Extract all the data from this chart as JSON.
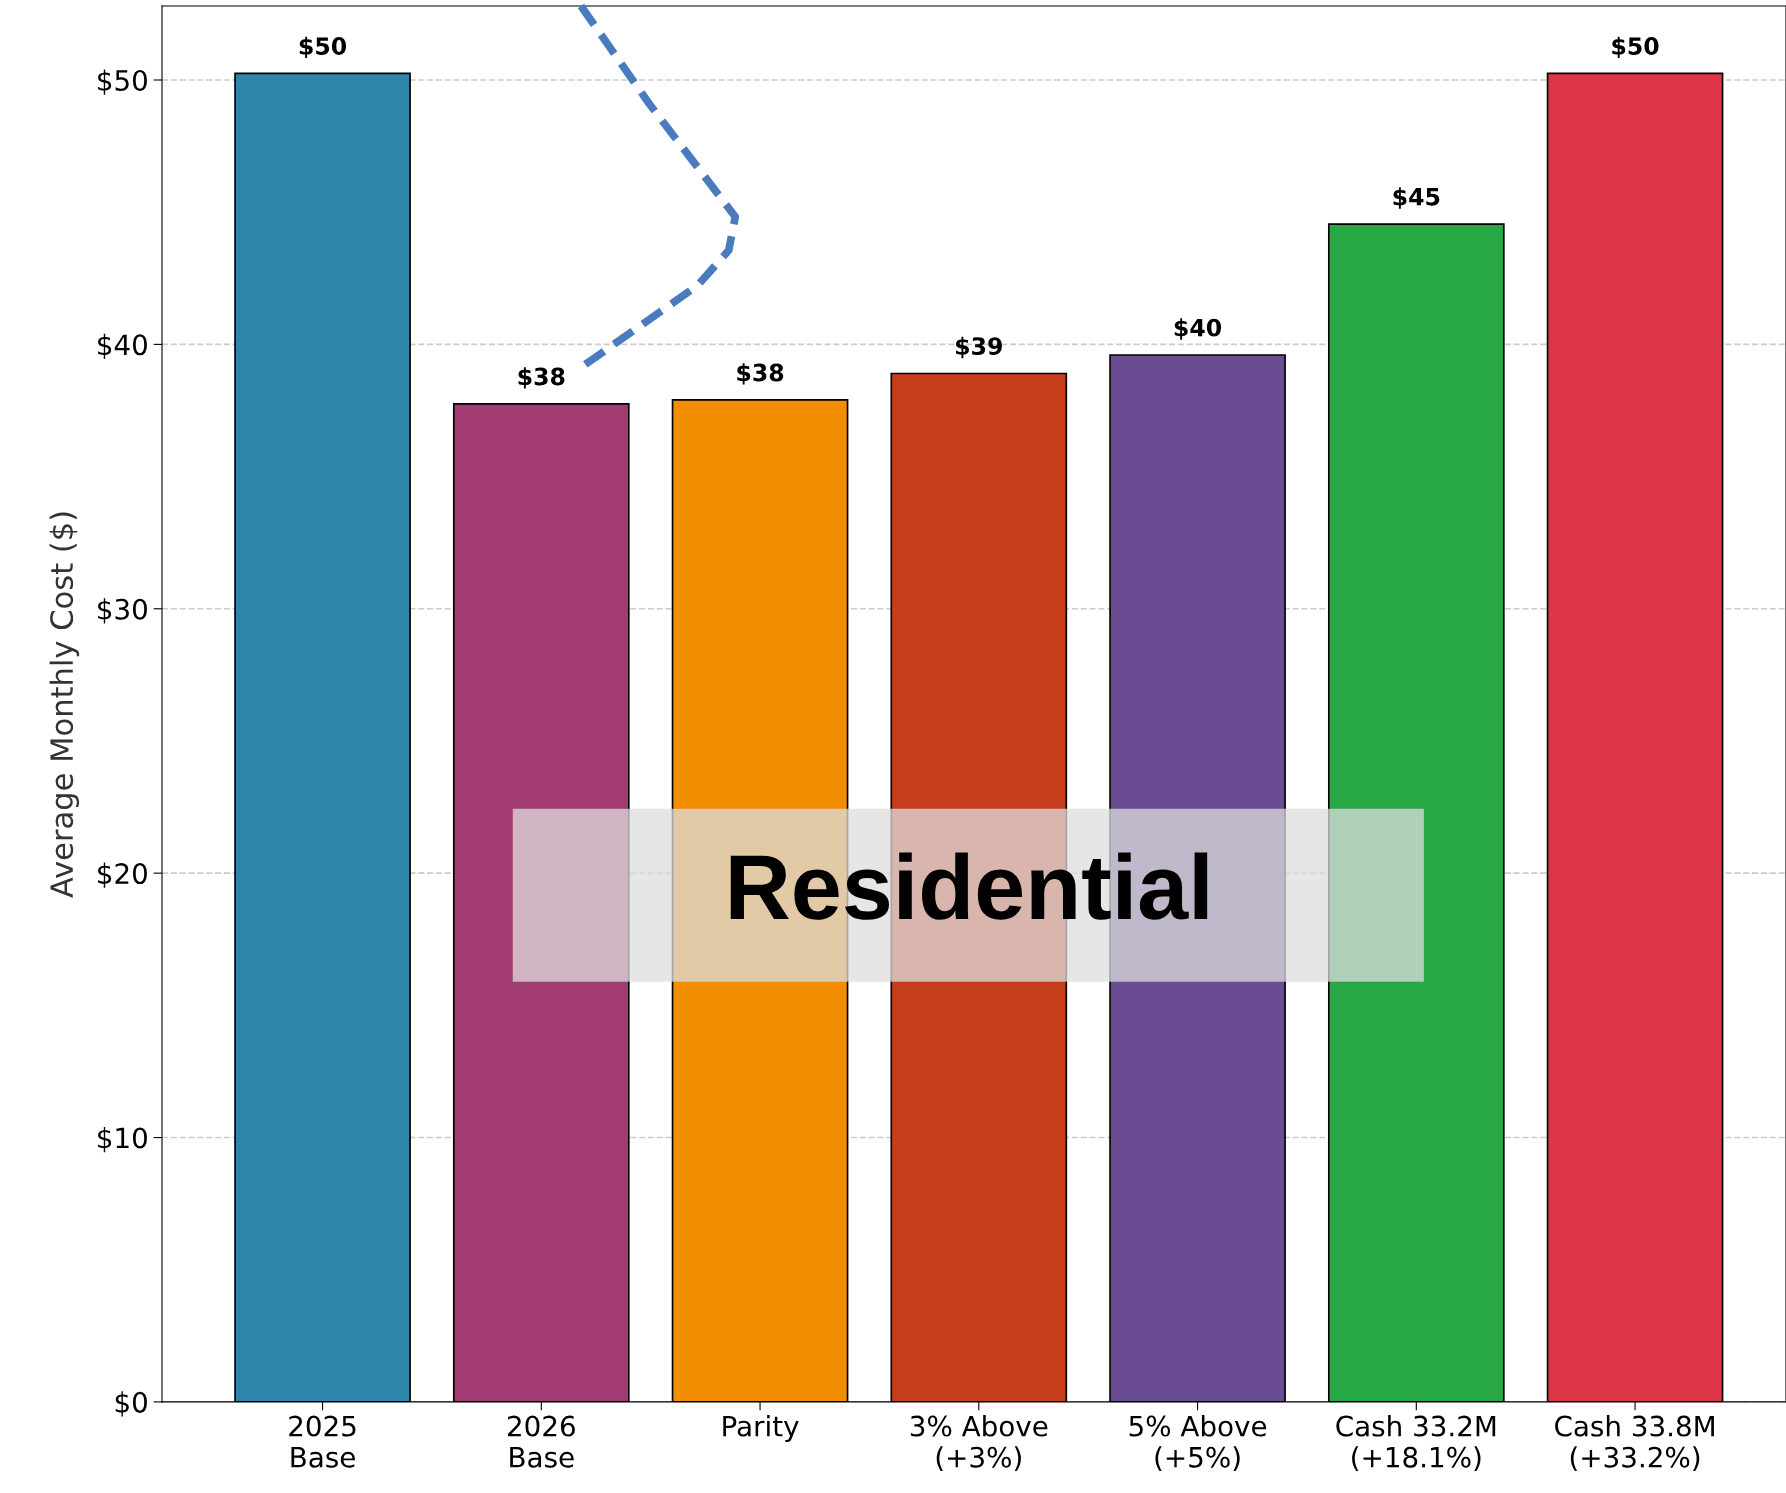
{
  "chart_data": {
    "type": "bar",
    "ylabel": "Average Monthly Cost ($)",
    "categories": [
      "2025\nBase",
      "2026\nBase",
      "Parity",
      "3% Above\n(+3%)",
      "5% Above\n(+5%)",
      "Cash 33.2M\n(+18.1%)",
      "Cash 33.8M\n(+33.2%)"
    ],
    "values": [
      50.25,
      37.75,
      37.9,
      38.9,
      39.6,
      44.55,
      50.25
    ],
    "value_labels": [
      "$50",
      "$38",
      "$38",
      "$39",
      "$40",
      "$45",
      "$50"
    ],
    "colors": [
      "#2e86ab",
      "#a23b72",
      "#f18f01",
      "#c73e1d",
      "#6a4c93",
      "#28a745",
      "#dc3545"
    ],
    "ylim": [
      0,
      52.8
    ],
    "yticks": [
      {
        "value": 0,
        "label": "$0"
      },
      {
        "value": 10,
        "label": "$10"
      },
      {
        "value": 20,
        "label": "$20"
      },
      {
        "value": 30,
        "label": "$30"
      },
      {
        "value": 40,
        "label": "$40"
      },
      {
        "value": 50,
        "label": "$50"
      }
    ],
    "grid": "y",
    "annotations": [
      "Residential"
    ]
  }
}
